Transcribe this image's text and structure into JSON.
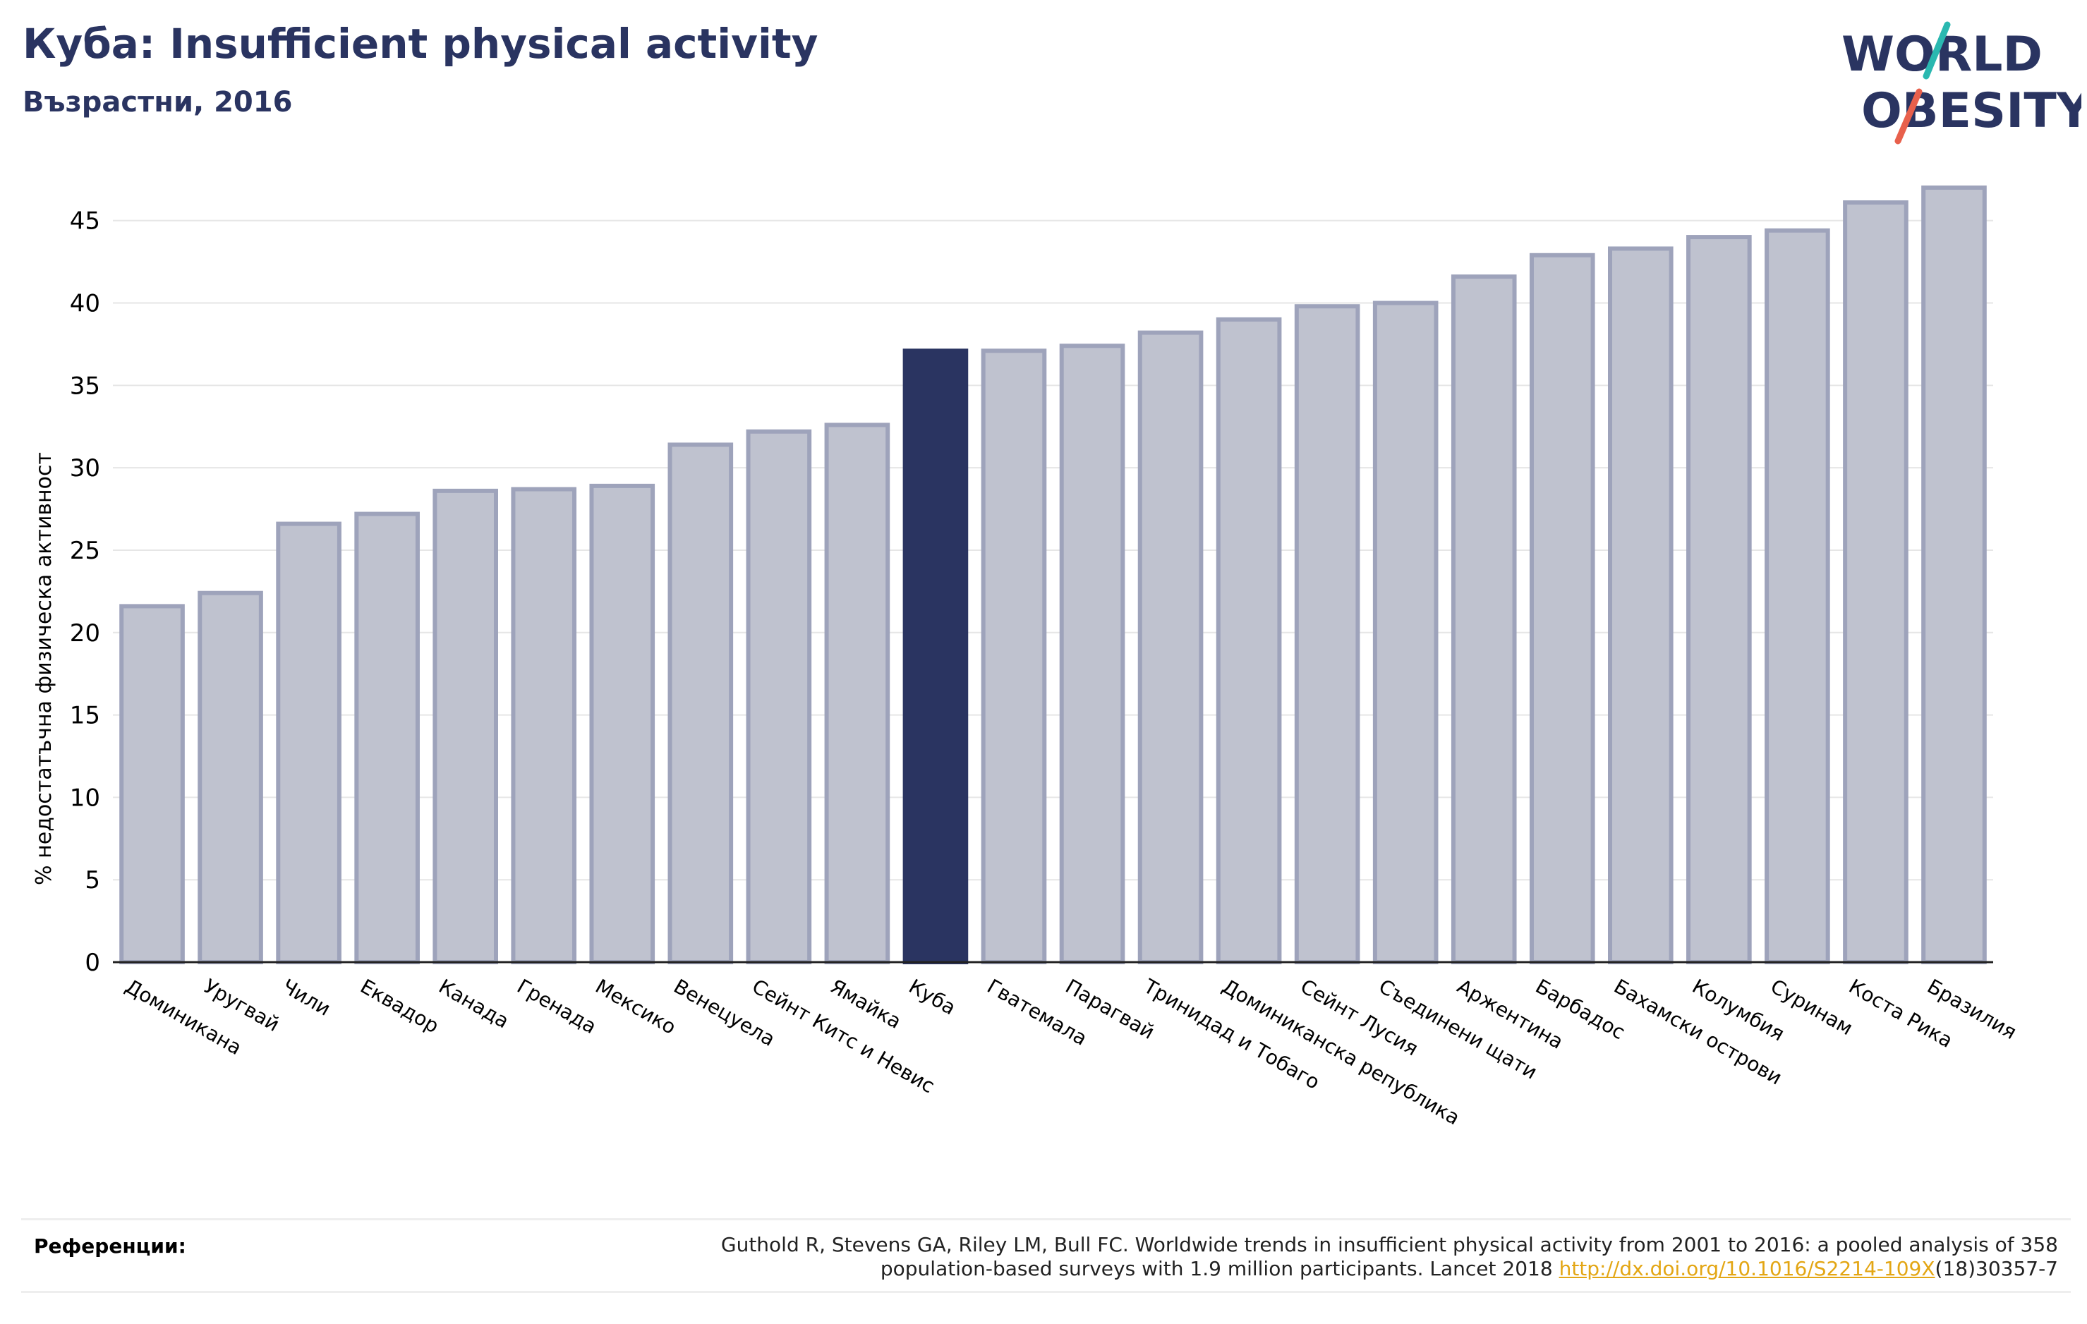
{
  "header": {
    "title": "Куба: Insufficient physical activity",
    "subtitle": "Възрастни, 2016"
  },
  "logo": {
    "line1": "WORLD",
    "line2": "OBESITY",
    "text_color": "#2a3461",
    "slash_colors": [
      "#2ab8b0",
      "#e8604c"
    ]
  },
  "chart_data": {
    "type": "bar",
    "ylabel": "% недостатъчна физическа активност",
    "ylim": [
      0,
      47
    ],
    "yticks": [
      0,
      5,
      10,
      15,
      20,
      25,
      30,
      35,
      40,
      45
    ],
    "grid": true,
    "highlight": "Куба",
    "bar_color": "#bfc2cf",
    "bar_edge_color": "#9ea3bb",
    "highlight_color": "#2a3461",
    "categories": [
      "Доминикана",
      "Уругвай",
      "Чили",
      "Еквадор",
      "Канада",
      "Гренада",
      "Мексико",
      "Венецуела",
      "Сейнт Китс и Невис",
      "Ямайка",
      "Куба",
      "Гватемала",
      "Парагвай",
      "Тринидад и Тобаго",
      "Доминиканска република",
      "Сейнт Лусия",
      "Съединени щати",
      "Аржентина",
      "Барбадос",
      "Бахамски острови",
      "Колумбия",
      "Суринам",
      "Коста Рика",
      "Бразилия"
    ],
    "values": [
      21.6,
      22.4,
      26.6,
      27.2,
      28.6,
      28.7,
      28.9,
      31.4,
      32.2,
      32.6,
      37.1,
      37.1,
      37.4,
      38.2,
      39.0,
      39.8,
      40.0,
      41.6,
      42.9,
      43.3,
      44.0,
      44.4,
      46.1,
      47.0
    ]
  },
  "references": {
    "label": "Референции:",
    "line1": "Guthold R, Stevens GA, Riley LM, Bull FC. Worldwide trends in insufficient physical activity from 2001 to 2016: a pooled analysis of 358",
    "line2_prefix": "population-based surveys with 1.9 million participants. Lancet 2018 ",
    "link": "http://dx.doi.org/10.1016/S2214-109X",
    "line2_suffix": "(18)30357-7"
  }
}
